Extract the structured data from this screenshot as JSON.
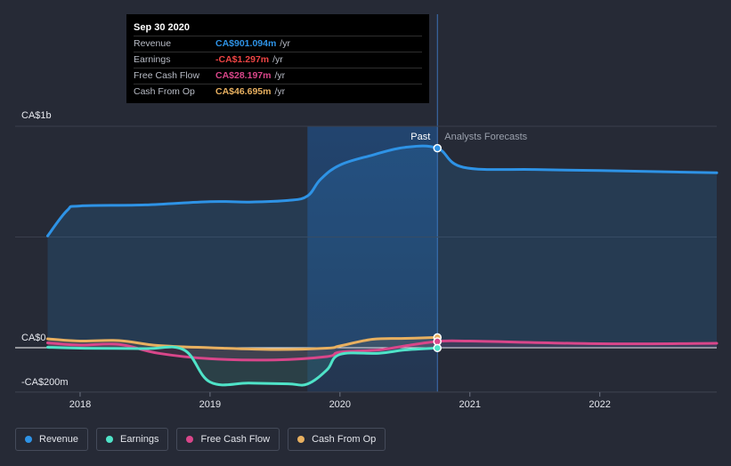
{
  "tooltip": {
    "date": "Sep 30 2020",
    "rows": [
      {
        "label": "Revenue",
        "value": "CA$901.094m",
        "unit": "/yr",
        "color": "#2e93e6"
      },
      {
        "label": "Earnings",
        "value": "-CA$1.297m",
        "unit": "/yr",
        "color": "#ee4444"
      },
      {
        "label": "Free Cash Flow",
        "value": "CA$28.197m",
        "unit": "/yr",
        "color": "#d9468a"
      },
      {
        "label": "Cash From Op",
        "value": "CA$46.695m",
        "unit": "/yr",
        "color": "#e8b060"
      }
    ]
  },
  "labels": {
    "past": "Past",
    "forecast": "Analysts Forecasts"
  },
  "legend": [
    {
      "name": "Revenue",
      "color": "#2e93e6"
    },
    {
      "name": "Earnings",
      "color": "#4fe3c8"
    },
    {
      "name": "Free Cash Flow",
      "color": "#d9468a"
    },
    {
      "name": "Cash From Op",
      "color": "#e8b060"
    }
  ],
  "chart_data": {
    "type": "line",
    "y_ticks": [
      {
        "value": 1000,
        "label": "CA$1b"
      },
      {
        "value": 0,
        "label": "CA$0"
      },
      {
        "value": -200,
        "label": "-CA$200m"
      }
    ],
    "x_ticks": [
      {
        "value": 2018,
        "label": "2018"
      },
      {
        "value": 2019,
        "label": "2019"
      },
      {
        "value": 2020,
        "label": "2020"
      },
      {
        "value": 2021,
        "label": "2021"
      },
      {
        "value": 2022,
        "label": "2022"
      }
    ],
    "xlim": [
      2017.5,
      2022.9
    ],
    "ylim": [
      -230,
      1000
    ],
    "past_end": 2020.75,
    "highlight_start": 2019.75,
    "series": [
      {
        "name": "Revenue",
        "color": "#2e93e6",
        "x": [
          2017.75,
          2017.9,
          2018.0,
          2018.5,
          2019.0,
          2019.3,
          2019.6,
          2019.75,
          2019.85,
          2020.0,
          2020.25,
          2020.5,
          2020.75,
          2020.95,
          2021.5,
          2022.0,
          2022.9
        ],
        "y": [
          505,
          620,
          640,
          645,
          660,
          658,
          665,
          685,
          760,
          825,
          870,
          905,
          901,
          815,
          805,
          800,
          790
        ]
      },
      {
        "name": "Earnings",
        "color": "#4fe3c8",
        "x": [
          2017.75,
          2018.0,
          2018.5,
          2018.8,
          2019.0,
          2019.3,
          2019.6,
          2019.75,
          2019.9,
          2020.0,
          2020.3,
          2020.5,
          2020.75
        ],
        "y": [
          2,
          -2,
          -4,
          -10,
          -155,
          -160,
          -163,
          -164,
          -100,
          -30,
          -25,
          -10,
          -1.3
        ]
      },
      {
        "name": "Free Cash Flow",
        "color": "#d9468a",
        "x": [
          2017.75,
          2018.0,
          2018.3,
          2018.6,
          2019.0,
          2019.5,
          2019.9,
          2020.0,
          2020.3,
          2020.5,
          2020.75,
          2021.0,
          2022.0,
          2022.9
        ],
        "y": [
          22,
          12,
          15,
          -25,
          -50,
          -55,
          -40,
          -20,
          -10,
          8,
          28,
          30,
          18,
          20
        ]
      },
      {
        "name": "Cash From Op",
        "color": "#e8b060",
        "x": [
          2017.75,
          2018.0,
          2018.3,
          2018.6,
          2019.0,
          2019.5,
          2019.9,
          2020.0,
          2020.25,
          2020.5,
          2020.75
        ],
        "y": [
          40,
          30,
          32,
          10,
          0,
          -8,
          -2,
          8,
          38,
          42,
          46.7
        ]
      }
    ]
  }
}
